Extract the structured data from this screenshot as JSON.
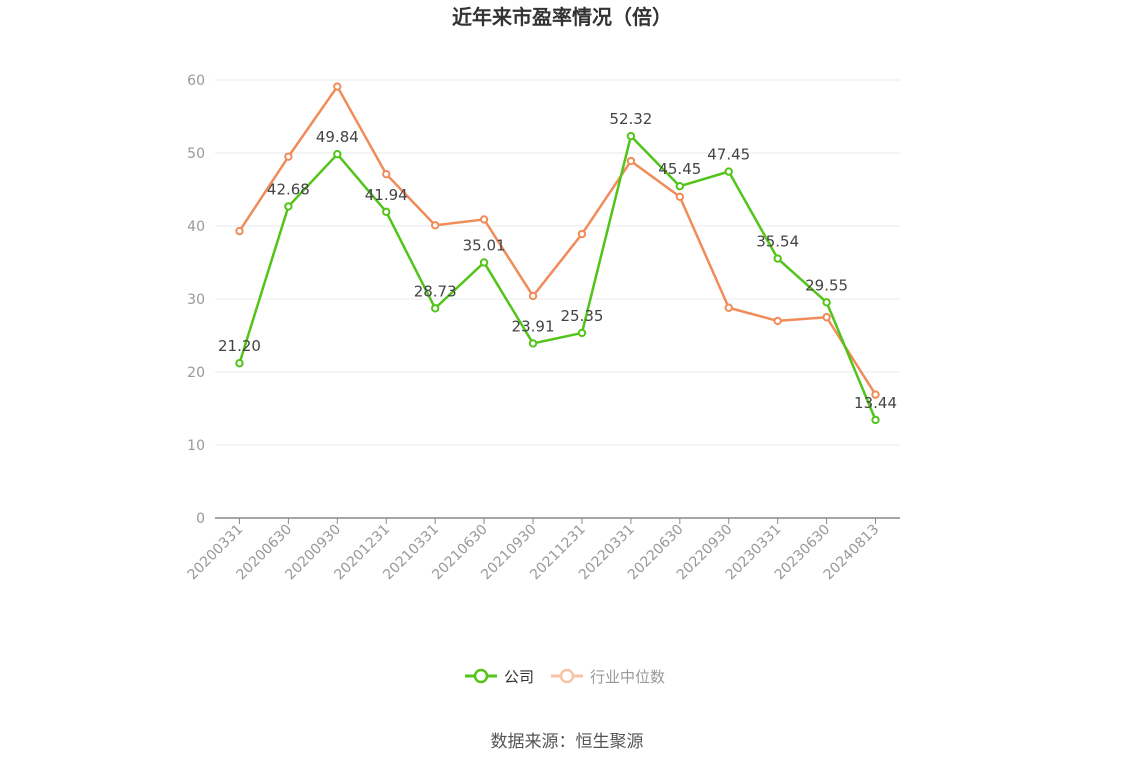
{
  "chart_data": {
    "type": "line",
    "title": "近年来市盈率情况（倍）",
    "source": "数据来源：恒生聚源",
    "xlabel": "",
    "ylabel": "",
    "ylim": [
      0,
      60
    ],
    "yticks": [
      0,
      10,
      20,
      30,
      40,
      50,
      60
    ],
    "grid": true,
    "legend": "bottom-center",
    "categories": [
      "20200331",
      "20200630",
      "20200930",
      "20201231",
      "20210331",
      "20210630",
      "20210930",
      "20211231",
      "20220331",
      "20220630",
      "20220930",
      "20230331",
      "20230630",
      "20240813"
    ],
    "series": [
      {
        "name": "公司",
        "color": "#52c41a",
        "show_labels": true,
        "values": [
          21.2,
          42.68,
          49.84,
          41.94,
          28.73,
          35.01,
          23.91,
          25.35,
          52.32,
          45.45,
          47.45,
          35.54,
          29.55,
          13.44
        ],
        "labels": [
          "21.20",
          "42.68",
          "49.84",
          "41.94",
          "28.73",
          "35.01",
          "23.91",
          "25.35",
          "52.32",
          "45.45",
          "47.45",
          "35.54",
          "29.55",
          "13.44"
        ]
      },
      {
        "name": "行业中位数",
        "color": "#f08c5a",
        "show_labels": false,
        "values": [
          39.3,
          49.5,
          59.1,
          47.1,
          40.1,
          40.9,
          30.4,
          38.9,
          48.9,
          44.0,
          28.8,
          27.0,
          27.5,
          16.9
        ]
      }
    ]
  }
}
